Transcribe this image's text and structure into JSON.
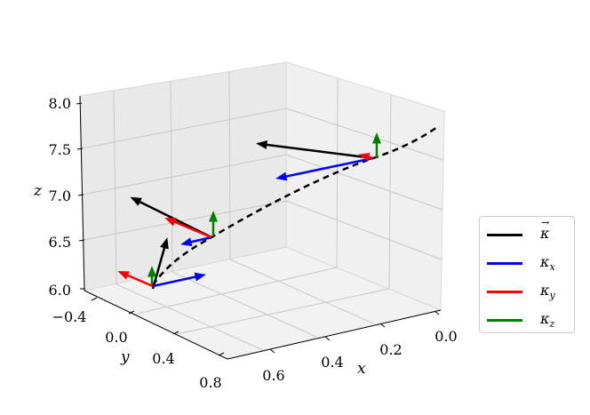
{
  "chart_data": {
    "type": "3d-line-quiver",
    "axes": {
      "x": {
        "label": "x",
        "ticks": [
          "0.0",
          "0.2",
          "0.4",
          "0.6"
        ]
      },
      "y": {
        "label": "y",
        "ticks": [
          "−0.4",
          "0.0",
          "0.4",
          "0.8"
        ]
      },
      "z": {
        "label": "z",
        "ticks": [
          "6.0",
          "6.5",
          "7.0",
          "7.5",
          "8.0"
        ]
      }
    },
    "legend": {
      "placement": "right",
      "entries": [
        {
          "symbol": "κ",
          "sub": "",
          "vector": true,
          "color": "#000000"
        },
        {
          "symbol": "κ",
          "sub": "x",
          "vector": false,
          "color": "#0000ff"
        },
        {
          "symbol": "κ",
          "sub": "y",
          "vector": false,
          "color": "#ff0000"
        },
        {
          "symbol": "κ",
          "sub": "z",
          "vector": false,
          "color": "#008000"
        }
      ]
    },
    "curve": {
      "style": "dashed",
      "color": "#000000"
    },
    "frames": [
      {
        "origin": "point 1",
        "kappa": "black",
        "kx": "blue",
        "ky": "red",
        "kz": "green"
      },
      {
        "origin": "point 2",
        "kappa": "black",
        "kx": "blue",
        "ky": "red",
        "kz": "green"
      },
      {
        "origin": "point 3",
        "kappa": "black",
        "kx": "blue",
        "ky": "red",
        "kz": "green"
      }
    ],
    "grid": true
  }
}
